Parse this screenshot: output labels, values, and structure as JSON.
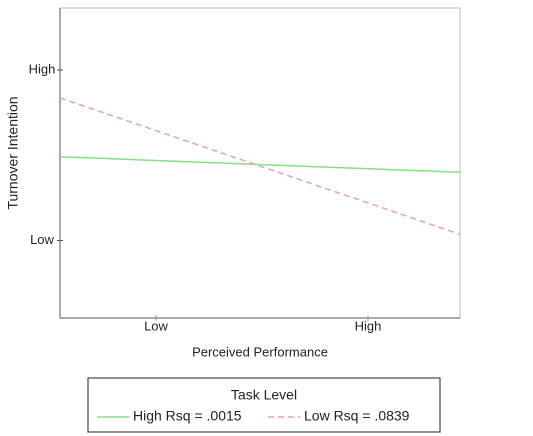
{
  "chart_data": {
    "type": "line",
    "x_label": "Perceived Performance",
    "y_label": "Turnover Intention",
    "x": [
      0,
      10
    ],
    "xlim": [
      0,
      10
    ],
    "xticks": [
      {
        "value": 2.4,
        "label": "Low"
      },
      {
        "value": 7.7,
        "label": "High"
      }
    ],
    "ylim": [
      0,
      10
    ],
    "yticks": [
      {
        "value": 2.5,
        "label": "Low"
      },
      {
        "value": 8,
        "label": "High"
      }
    ],
    "legend_title": "Task Level",
    "legend_position": "bottom",
    "series": [
      {
        "name": "High Rsq = .0015",
        "color": "#86e086",
        "linestyle": "solid",
        "values": [
          5.2,
          4.7
        ]
      },
      {
        "name": "Low Rsq = .0839",
        "color": "#e9a3a3",
        "linestyle": "dashed",
        "values": [
          7.1,
          2.7
        ]
      }
    ]
  }
}
